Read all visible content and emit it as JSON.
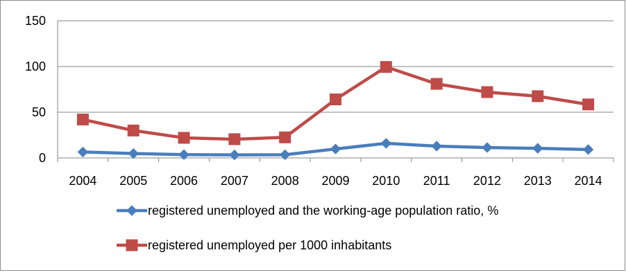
{
  "chart_data": {
    "type": "line",
    "categories": [
      "2004",
      "2005",
      "2006",
      "2007",
      "2008",
      "2009",
      "2010",
      "2011",
      "2012",
      "2013",
      "2014"
    ],
    "series": [
      {
        "name": "registered unemployed and the working-age population ratio, %",
        "values": [
          6.5,
          4.8,
          3.6,
          3.3,
          3.5,
          9.8,
          16.0,
          12.9,
          11.4,
          10.5,
          9.2
        ],
        "color": "#4a7ebb",
        "marker": "diamond"
      },
      {
        "name": "registered unemployed per 1000 inhabitants",
        "values": [
          42,
          30,
          22,
          20.5,
          22.5,
          64,
          99.5,
          81,
          72,
          67.5,
          58.5
        ],
        "color": "#be4b48",
        "marker": "square"
      }
    ],
    "ylim": [
      0,
      150
    ],
    "yticks": [
      "0",
      "50",
      "100",
      "150"
    ],
    "grid": true,
    "legend_position": "bottom"
  }
}
